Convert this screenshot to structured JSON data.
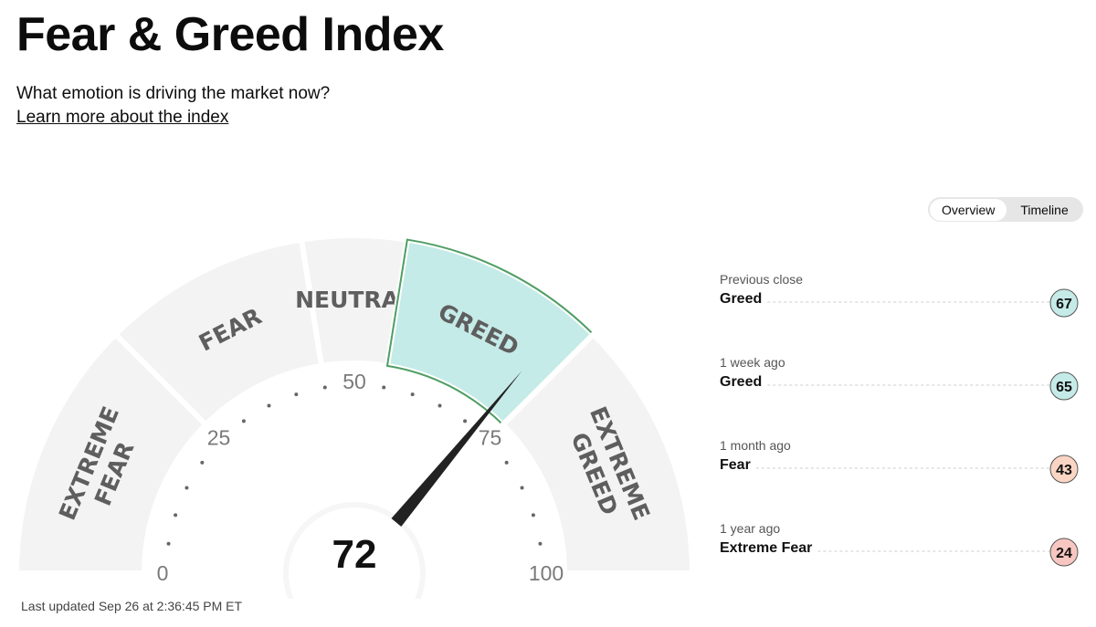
{
  "header": {
    "title": "Fear & Greed Index",
    "subtitle": "What emotion is driving the market now?",
    "link": "Learn more about the index"
  },
  "tabs": [
    "Overview",
    "Timeline"
  ],
  "gauge": {
    "value": 72,
    "ticks": [
      0,
      25,
      50,
      75,
      100
    ],
    "segments": [
      {
        "label": [
          "EXTREME",
          "FEAR"
        ],
        "to": 25,
        "color": "#f8c6c0"
      },
      {
        "label": [
          "FEAR"
        ],
        "to": 45,
        "color": "#fbd5c3"
      },
      {
        "label": [
          "NEUTRAL"
        ],
        "to": 55,
        "color": "#ececec"
      },
      {
        "label": [
          "GREED"
        ],
        "to": 75,
        "color": "#c5ebe8"
      },
      {
        "label": [
          "EXTREME",
          "GREED"
        ],
        "to": 100,
        "color": "#a9ddd1"
      }
    ]
  },
  "history": [
    {
      "period": "Previous close",
      "label": "Greed",
      "value": 67
    },
    {
      "period": "1 week ago",
      "label": "Greed",
      "value": 65
    },
    {
      "period": "1 month ago",
      "label": "Fear",
      "value": 43
    },
    {
      "period": "1 year ago",
      "label": "Extreme Fear",
      "value": 24
    }
  ],
  "footer": "Last updated Sep 26 at 2:36:45 PM ET"
}
